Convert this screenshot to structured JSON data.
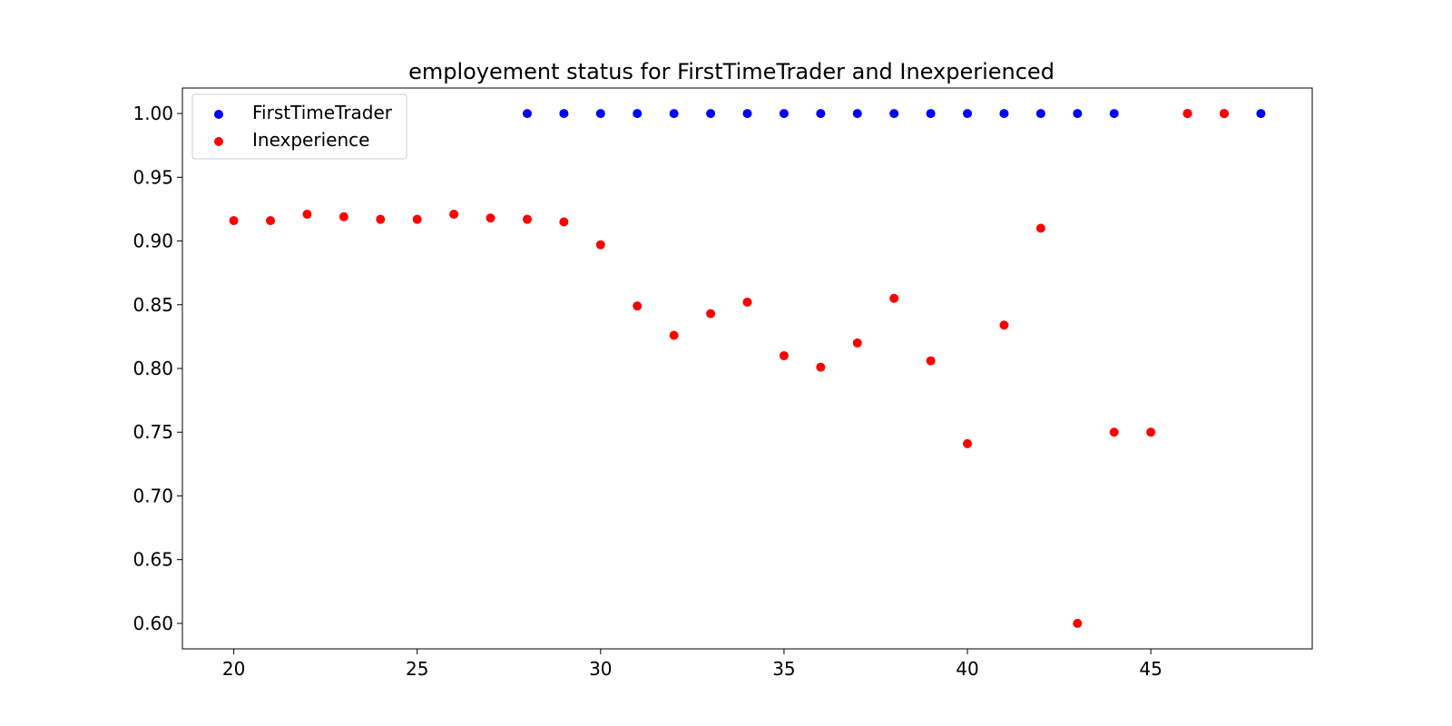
{
  "chart_data": {
    "type": "scatter",
    "title": "employement status for FirstTimeTrader and Inexperienced",
    "xlabel": "",
    "ylabel": "",
    "xlim": [
      18.6,
      49.4
    ],
    "ylim": [
      0.58,
      1.02
    ],
    "x_ticks": [
      20,
      25,
      30,
      35,
      40,
      45
    ],
    "y_ticks": [
      0.6,
      0.65,
      0.7,
      0.75,
      0.8,
      0.85,
      0.9,
      0.95,
      1.0
    ],
    "grid": false,
    "legend_position": "top-left",
    "series": [
      {
        "name": "FirstTimeTrader",
        "color": "#0000ff",
        "x": [
          28,
          29,
          30,
          31,
          32,
          33,
          34,
          35,
          36,
          37,
          38,
          39,
          40,
          41,
          42,
          43,
          44,
          46,
          47,
          48
        ],
        "y": [
          1.0,
          1.0,
          1.0,
          1.0,
          1.0,
          1.0,
          1.0,
          1.0,
          1.0,
          1.0,
          1.0,
          1.0,
          1.0,
          1.0,
          1.0,
          1.0,
          1.0,
          1.0,
          1.0,
          1.0
        ]
      },
      {
        "name": "Inexperience",
        "color": "#ff0000",
        "x": [
          20,
          21,
          22,
          23,
          24,
          25,
          26,
          27,
          28,
          29,
          30,
          31,
          32,
          33,
          34,
          35,
          36,
          37,
          38,
          39,
          40,
          41,
          42,
          43,
          44,
          45,
          46,
          47
        ],
        "y": [
          0.916,
          0.916,
          0.921,
          0.919,
          0.917,
          0.917,
          0.921,
          0.918,
          0.917,
          0.915,
          0.897,
          0.849,
          0.826,
          0.843,
          0.852,
          0.81,
          0.801,
          0.82,
          0.855,
          0.806,
          0.741,
          0.834,
          0.91,
          0.6,
          0.75,
          0.75,
          1.0,
          1.0
        ]
      }
    ]
  }
}
